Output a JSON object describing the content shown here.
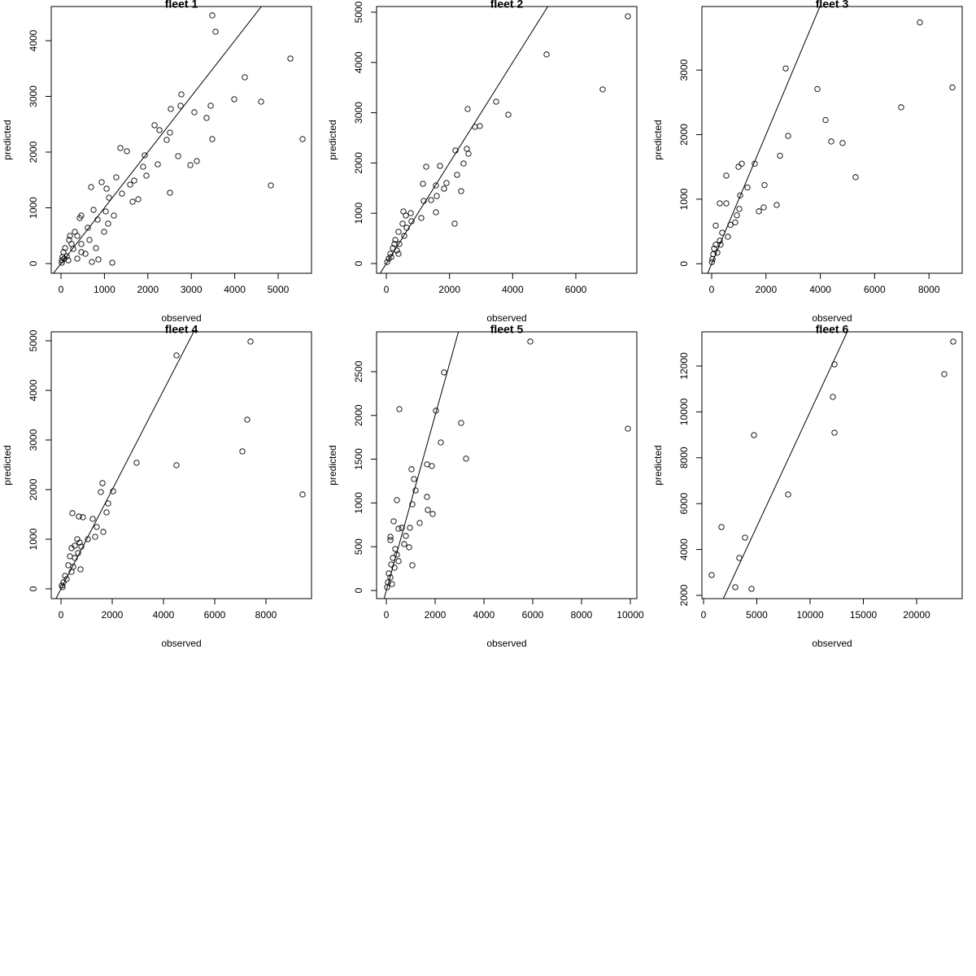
{
  "chart_data": [
    {
      "type": "scatter",
      "title": "fleet 1",
      "x_label": "observed",
      "y_label": "predicted",
      "identity_line": true,
      "xlim": [
        -225,
        5768
      ],
      "ylim": [
        -175,
        4613
      ],
      "xticks": [
        0,
        1000,
        2000,
        3000,
        4000,
        5000
      ],
      "yticks": [
        0,
        1000,
        2000,
        3000,
        4000
      ],
      "x": [
        3483,
        3558,
        5281,
        4232,
        3446,
        3989,
        4607,
        2772,
        2753,
        3352,
        3071,
        2528,
        2154,
        2266,
        1367,
        1517,
        1929,
        2509,
        2434,
        3483,
        5562,
        3127,
        2978,
        2697,
        2228,
        2509,
        4831,
        1180,
        1891,
        1966,
        1685,
        1592,
        1273,
        1049,
        936,
        1105,
        1404,
        1648,
        1779,
        1030,
        749,
        693,
        468,
        431,
        843,
        1086,
        618,
        375,
        187,
        243,
        94,
        56,
        37,
        19,
        281,
        468,
        655,
        805,
        861,
        712,
        375,
        562,
        131,
        468,
        318,
        75,
        19,
        168,
        993,
        1217,
        206
      ],
      "values": [
        4453,
        4161,
        3679,
        3343,
        2832,
        2949,
        2905,
        3036,
        2832,
        2613,
        2715,
        2774,
        2482,
        2394,
        2073,
        2015,
        1942,
        2350,
        2219,
        2233,
        2233,
        1839,
        1766,
        1927,
        1781,
        1270,
        1401,
        15,
        1737,
        1577,
        1489,
        1416,
        1547,
        1343,
        1460,
        1182,
        1255,
        1109,
        1153,
        934,
        963,
        1372,
        861,
        817,
        788,
        715,
        642,
        496,
        423,
        350,
        277,
        204,
        117,
        58,
        263,
        350,
        423,
        277,
        73,
        29,
        88,
        175,
        131,
        204,
        569,
        88,
        15,
        58,
        569,
        861,
        496
      ]
    },
    {
      "type": "scatter",
      "title": "fleet 2",
      "x_label": "observed",
      "y_label": "predicted",
      "identity_line": true,
      "xlim": [
        -309,
        7932
      ],
      "ylim": [
        -194,
        5113
      ],
      "xticks": [
        0,
        2000,
        4000,
        6000
      ],
      "yticks": [
        0,
        1000,
        2000,
        3000,
        4000,
        5000
      ],
      "x": [
        7649,
        5073,
        6850,
        3477,
        3863,
        2575,
        2962,
        2807,
        2549,
        2601,
        2189,
        2446,
        1700,
        1262,
        1906,
        1829,
        2240,
        2369,
        1571,
        1597,
        1571,
        2163,
        1159,
        1185,
        1416,
        1107,
        773,
        541,
        618,
        798,
        515,
        644,
        386,
        567,
        283,
        412,
        206,
        129,
        77,
        26,
        335,
        154,
        386,
        258
      ],
      "values": [
        4919,
        4159,
        3463,
        3220,
        2961,
        3074,
        2735,
        2718,
        2282,
        2184,
        2249,
        1990,
        1942,
        1926,
        1602,
        1489,
        1764,
        1440,
        1553,
        1343,
        1019,
        793,
        1586,
        1246,
        1262,
        906,
        1003,
        1036,
        955,
        841,
        793,
        712,
        631,
        550,
        469,
        388,
        307,
        194,
        97,
        32,
        259,
        129,
        194,
        388
      ]
    },
    {
      "type": "scatter",
      "title": "fleet 3",
      "x_label": "observed",
      "y_label": "predicted",
      "identity_line": true,
      "xlim": [
        -359,
        9222
      ],
      "ylim": [
        -148,
        3985
      ],
      "xticks": [
        0,
        2000,
        4000,
        6000,
        8000
      ],
      "yticks": [
        0,
        1000,
        2000,
        3000
      ],
      "x": [
        7665,
        8862,
        6976,
        3892,
        2725,
        4192,
        4401,
        4820,
        5299,
        2814,
        2515,
        1587,
        1946,
        1916,
        1737,
        2395,
        1108,
        988,
        539,
        1317,
        1048,
        1018,
        928,
        868,
        299,
        539,
        150,
        389,
        599,
        299,
        150,
        90,
        60,
        30,
        10,
        210,
        329,
        689
      ],
      "values": [
        3739,
        2731,
        2423,
        2706,
        3026,
        2226,
        1894,
        1870,
        1341,
        1980,
        1673,
        1550,
        1218,
        873,
        812,
        910,
        1550,
        1501,
        1365,
        1181,
        1058,
        849,
        750,
        640,
        935,
        935,
        590,
        480,
        418,
        357,
        295,
        234,
        148,
        74,
        25,
        172,
        295,
        603
      ]
    },
    {
      "type": "scatter",
      "title": "fleet 4",
      "x_label": "observed",
      "y_label": "predicted",
      "identity_line": true,
      "xlim": [
        -381,
        9778
      ],
      "ylim": [
        -197,
        5180
      ],
      "xticks": [
        0,
        2000,
        4000,
        6000,
        8000
      ],
      "yticks": [
        0,
        1000,
        2000,
        3000,
        4000,
        5000
      ],
      "x": [
        7397,
        4508,
        7270,
        7079,
        9429,
        2952,
        4508,
        1619,
        2032,
        1556,
        1841,
        1778,
        1651,
        444,
        698,
        857,
        1238,
        1397,
        1333,
        1048,
        635,
        730,
        540,
        794,
        667,
        413,
        540,
        349,
        476,
        762,
        286,
        413,
        159,
        222,
        95,
        32,
        63
      ],
      "values": [
        4984,
        4705,
        3410,
        2770,
        1902,
        2541,
        2492,
        2131,
        1967,
        1951,
        1721,
        1541,
        1148,
        1525,
        1459,
        1443,
        1410,
        1246,
        1049,
        1000,
        1000,
        934,
        869,
        852,
        721,
        820,
        623,
        656,
        443,
        393,
        475,
        344,
        262,
        197,
        131,
        66,
        33
      ]
    },
    {
      "type": "scatter",
      "title": "fleet 5",
      "x_label": "observed",
      "y_label": "predicted",
      "identity_line": true,
      "xlim": [
        -400,
        10267
      ],
      "ylim": [
        -93,
        2955
      ],
      "xticks": [
        0,
        2000,
        4000,
        6000,
        8000,
        10000
      ],
      "yticks": [
        0,
        500,
        1000,
        1500,
        2000,
        2500
      ],
      "x": [
        5900,
        2367,
        9900,
        533,
        2033,
        3067,
        2233,
        3267,
        1667,
        1867,
        1033,
        1133,
        1200,
        1667,
        433,
        1067,
        1700,
        1900,
        1367,
        300,
        967,
        633,
        500,
        800,
        167,
        167,
        733,
        933,
        367,
        433,
        267,
        500,
        200,
        1067,
        333,
        100,
        167,
        67,
        33,
        233
      ],
      "values": [
        2844,
        2491,
        1849,
        2072,
        2054,
        1914,
        1691,
        1506,
        1441,
        1422,
        1385,
        1273,
        1143,
        1069,
        1032,
        985,
        920,
        874,
        771,
        790,
        716,
        716,
        706,
        623,
        613,
        576,
        530,
        493,
        474,
        409,
        372,
        335,
        297,
        288,
        260,
        195,
        149,
        93,
        37,
        74
      ]
    },
    {
      "type": "scatter",
      "title": "fleet 6",
      "x_label": "observed",
      "y_label": "predicted",
      "identity_line": true,
      "xlim": [
        -153,
        24275
      ],
      "ylim": [
        1858,
        13489
      ],
      "xticks": [
        0,
        5000,
        10000,
        15000,
        20000
      ],
      "yticks": [
        2000,
        4000,
        6000,
        8000,
        10000,
        12000
      ],
      "x": [
        23435,
        22595,
        12290,
        12137,
        12290,
        4733,
        7939,
        1679,
        3893,
        3359,
        763,
        2977,
        4504
      ],
      "values": [
        13064,
        11645,
        12071,
        10652,
        9092,
        8986,
        6397,
        4979,
        4518,
        3631,
        2887,
        2355,
        2284
      ]
    }
  ]
}
